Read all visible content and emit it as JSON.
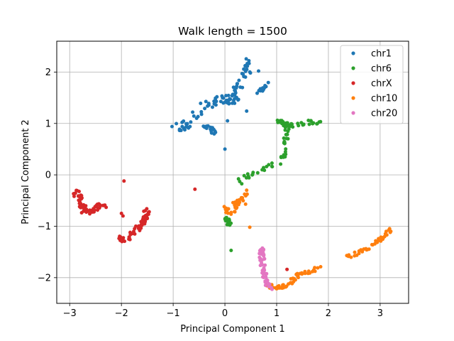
{
  "chart_data": {
    "type": "scatter",
    "title": "Walk length = 1500",
    "xlabel": "Principal Component 1",
    "ylabel": "Principal Component 2",
    "xlim": [
      -3.25,
      3.55
    ],
    "ylim": [
      -2.5,
      2.6
    ],
    "xticks": [
      -3,
      -2,
      -1,
      0,
      1,
      2,
      3
    ],
    "yticks": [
      -2,
      -1,
      0,
      1,
      2
    ],
    "grid": true,
    "legend_position": "top-right",
    "series": [
      {
        "name": "chr1",
        "color": "#1f77b4",
        "clusters": [
          {
            "path": [
              [
                -1.0,
                0.86
              ],
              [
                -0.8,
                0.93
              ],
              [
                -0.6,
                1.12
              ],
              [
                -0.4,
                1.32
              ],
              [
                -0.2,
                1.42
              ],
              [
                0.0,
                1.5
              ],
              [
                0.15,
                1.42
              ],
              [
                0.25,
                1.7
              ],
              [
                0.35,
                1.95
              ],
              [
                0.45,
                2.15
              ],
              [
                0.5,
                2.22
              ]
            ],
            "n": 95,
            "spread": 0.09,
            "seed": 11
          },
          {
            "path": [
              [
                -0.4,
                0.98
              ],
              [
                -0.3,
                0.9
              ],
              [
                -0.15,
                0.85
              ]
            ],
            "n": 16,
            "spread": 0.06,
            "seed": 12
          },
          {
            "path": [
              [
                0.65,
                1.62
              ],
              [
                0.75,
                1.7
              ],
              [
                0.85,
                1.8
              ]
            ],
            "n": 14,
            "spread": 0.04,
            "seed": 13
          },
          {
            "points": [
              [
                0.0,
                0.5
              ],
              [
                0.42,
                1.24
              ],
              [
                0.05,
                1.05
              ],
              [
                0.65,
                2.02
              ]
            ]
          }
        ]
      },
      {
        "name": "chr6",
        "color": "#2ca02c",
        "clusters": [
          {
            "path": [
              [
                0.3,
                -0.12
              ],
              [
                0.42,
                -0.02
              ],
              [
                0.65,
                0.05
              ],
              [
                0.85,
                0.15
              ],
              [
                1.05,
                0.25
              ],
              [
                1.15,
                0.5
              ],
              [
                1.2,
                0.75
              ],
              [
                1.2,
                1.0
              ]
            ],
            "n": 45,
            "spread": 0.06,
            "seed": 21
          },
          {
            "path": [
              [
                1.05,
                1.05
              ],
              [
                1.2,
                0.98
              ],
              [
                1.35,
                0.95
              ]
            ],
            "n": 28,
            "spread": 0.04,
            "seed": 22
          },
          {
            "path": [
              [
                1.4,
                0.98
              ],
              [
                1.6,
                1.02
              ],
              [
                1.85,
                1.0
              ]
            ],
            "n": 16,
            "spread": 0.04,
            "seed": 23
          },
          {
            "path": [
              [
                0.0,
                -0.85
              ],
              [
                0.05,
                -0.9
              ],
              [
                0.1,
                -1.0
              ]
            ],
            "n": 14,
            "spread": 0.04,
            "seed": 24
          },
          {
            "points": [
              [
                0.12,
                -1.47
              ]
            ]
          }
        ]
      },
      {
        "name": "chrX",
        "color": "#d62728",
        "clusters": [
          {
            "path": [
              [
                -2.9,
                -0.3
              ],
              [
                -2.8,
                -0.5
              ],
              [
                -2.7,
                -0.7
              ],
              [
                -2.6,
                -0.75
              ],
              [
                -2.45,
                -0.62
              ],
              [
                -2.3,
                -0.6
              ]
            ],
            "n": 60,
            "spread": 0.06,
            "seed": 31
          },
          {
            "path": [
              [
                -2.05,
                -1.22
              ],
              [
                -1.9,
                -1.28
              ],
              [
                -1.75,
                -1.1
              ],
              [
                -1.6,
                -0.95
              ],
              [
                -1.5,
                -0.75
              ],
              [
                -1.52,
                -0.65
              ]
            ],
            "n": 55,
            "spread": 0.05,
            "seed": 32
          },
          {
            "points": [
              [
                -1.95,
                -0.12
              ],
              [
                -0.58,
                -0.28
              ],
              [
                -1.97,
                -0.8
              ],
              [
                -2.0,
                -0.75
              ],
              [
                1.2,
                -1.84
              ]
            ]
          }
        ]
      },
      {
        "name": "chr10",
        "color": "#ff7f0e",
        "clusters": [
          {
            "path": [
              [
                -0.05,
                -0.6
              ],
              [
                0.1,
                -0.75
              ],
              [
                0.2,
                -0.6
              ],
              [
                0.3,
                -0.5
              ],
              [
                0.45,
                -0.3
              ]
            ],
            "n": 38,
            "spread": 0.06,
            "seed": 41
          },
          {
            "path": [
              [
                0.8,
                -2.15
              ],
              [
                1.0,
                -2.2
              ],
              [
                1.2,
                -2.15
              ],
              [
                1.4,
                -1.95
              ],
              [
                1.6,
                -1.88
              ],
              [
                1.85,
                -1.82
              ]
            ],
            "n": 55,
            "spread": 0.04,
            "seed": 42
          },
          {
            "path": [
              [
                2.35,
                -1.62
              ],
              [
                2.6,
                -1.5
              ],
              [
                2.8,
                -1.4
              ],
              [
                3.0,
                -1.25
              ],
              [
                3.2,
                -1.05
              ]
            ],
            "n": 38,
            "spread": 0.04,
            "seed": 43
          },
          {
            "points": [
              [
                0.48,
                -1.02
              ],
              [
                0.4,
                -0.57
              ]
            ]
          }
        ]
      },
      {
        "name": "chr20",
        "color": "#e377c2",
        "clusters": [
          {
            "path": [
              [
                0.7,
                -1.4
              ],
              [
                0.72,
                -1.65
              ],
              [
                0.75,
                -1.85
              ],
              [
                0.8,
                -2.05
              ],
              [
                0.9,
                -2.2
              ]
            ],
            "n": 55,
            "spread": 0.05,
            "seed": 51
          }
        ]
      }
    ]
  }
}
